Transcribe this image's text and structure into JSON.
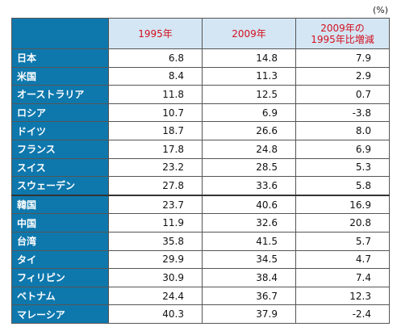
{
  "unit_label": "(%)",
  "chart_data": {
    "type": "table",
    "columns": [
      "",
      "1995年",
      "2009年",
      "2009年の\n1995年比増減"
    ],
    "rows": [
      {
        "country": "日本",
        "y1995": "6.8",
        "y2009": "14.8",
        "change": "7.9"
      },
      {
        "country": "米国",
        "y1995": "8.4",
        "y2009": "11.3",
        "change": "2.9"
      },
      {
        "country": "オーストラリア",
        "y1995": "11.8",
        "y2009": "12.5",
        "change": "0.7"
      },
      {
        "country": "ロシア",
        "y1995": "10.7",
        "y2009": "6.9",
        "change": "-3.8"
      },
      {
        "country": "ドイツ",
        "y1995": "18.7",
        "y2009": "26.6",
        "change": "8.0"
      },
      {
        "country": "フランス",
        "y1995": "17.8",
        "y2009": "24.8",
        "change": "6.9"
      },
      {
        "country": "スイス",
        "y1995": "23.2",
        "y2009": "28.5",
        "change": "5.3"
      },
      {
        "country": "スウェーデン",
        "y1995": "27.8",
        "y2009": "33.6",
        "change": "5.8"
      },
      {
        "country": "韓国",
        "y1995": "23.7",
        "y2009": "40.6",
        "change": "16.9"
      },
      {
        "country": "中国",
        "y1995": "11.9",
        "y2009": "32.6",
        "change": "20.8"
      },
      {
        "country": "台湾",
        "y1995": "35.8",
        "y2009": "41.5",
        "change": "5.7"
      },
      {
        "country": "タイ",
        "y1995": "29.9",
        "y2009": "34.5",
        "change": "4.7"
      },
      {
        "country": "フィリピン",
        "y1995": "30.9",
        "y2009": "38.4",
        "change": "7.4"
      },
      {
        "country": "ベトナム",
        "y1995": "24.4",
        "y2009": "36.7",
        "change": "12.3"
      },
      {
        "country": "マレーシア",
        "y1995": "40.3",
        "y2009": "37.9",
        "change": "-2.4"
      }
    ]
  }
}
